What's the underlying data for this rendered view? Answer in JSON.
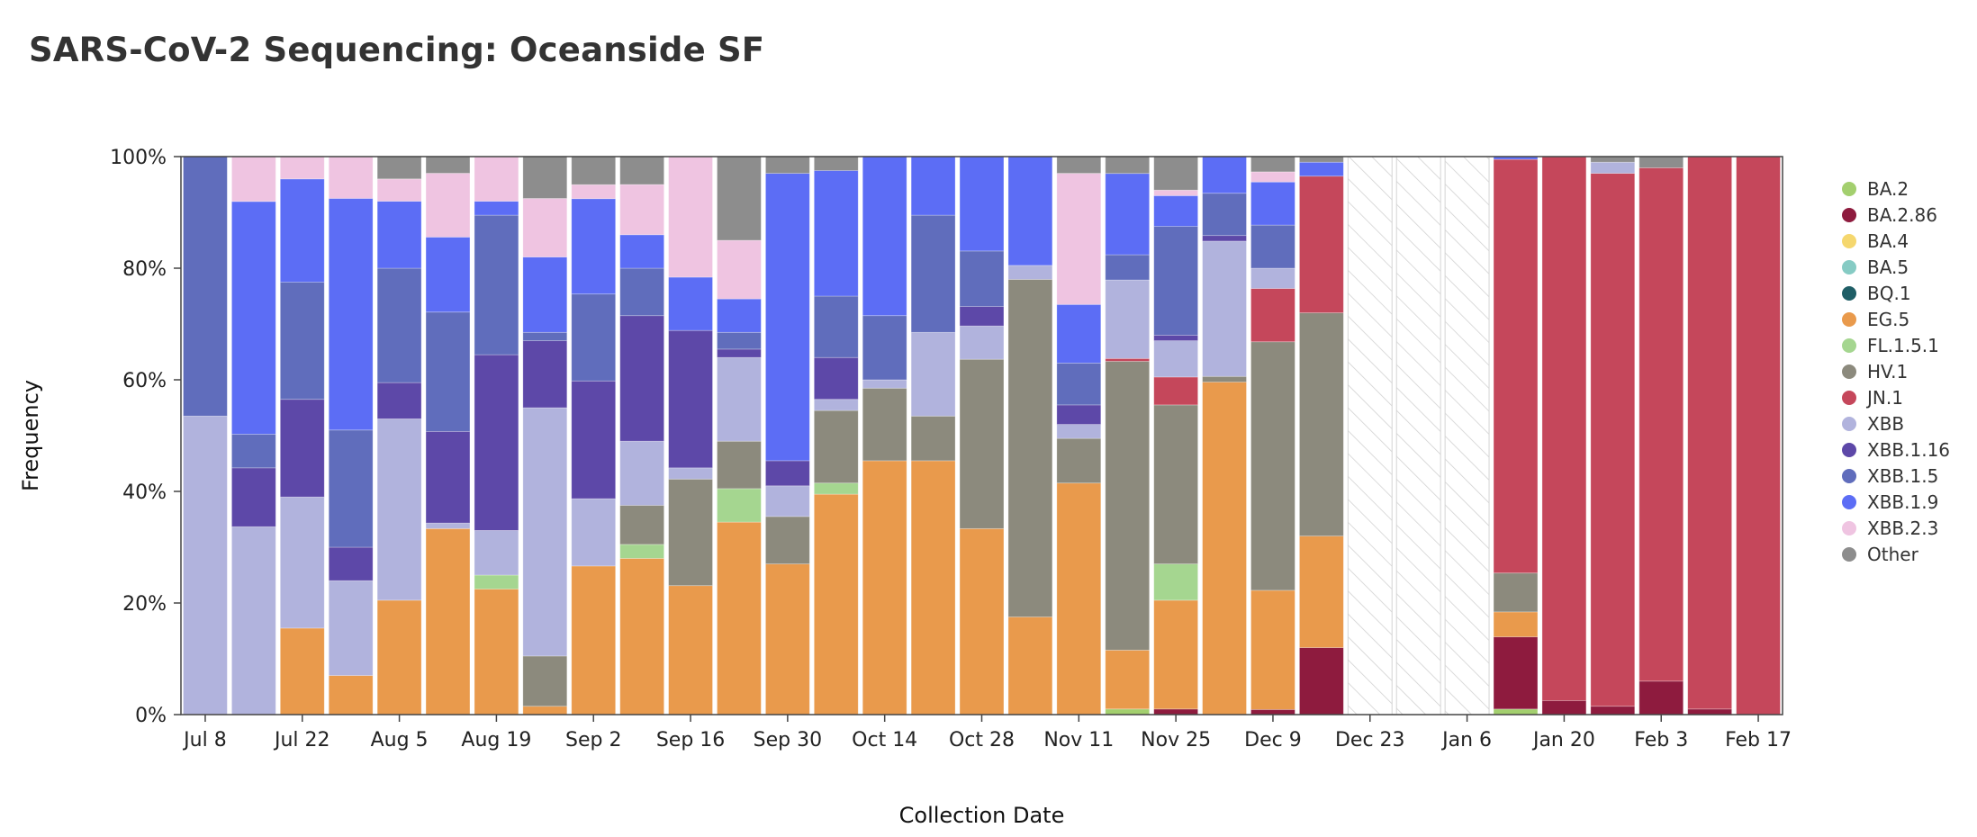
{
  "chart_data": {
    "type": "bar",
    "stacked": true,
    "normalized": true,
    "title": "SARS-CoV-2 Sequencing: Oceanside SF",
    "xlabel": "Collection Date",
    "ylabel": "Frequency",
    "ylim": [
      0,
      100
    ],
    "yticks": [
      "0%",
      "20%",
      "40%",
      "60%",
      "80%",
      "100%"
    ],
    "xtick_labels": [
      "Jul 8",
      "Jul 22",
      "Aug 5",
      "Aug 19",
      "Sep 2",
      "Sep 16",
      "Sep 30",
      "Oct 14",
      "Oct 28",
      "Nov 11",
      "Nov 25",
      "Dec 9",
      "Dec 23",
      "Jan 6",
      "Jan 20",
      "Feb 3",
      "Feb 17"
    ],
    "categories": [
      "Jul 8",
      "Jul 15",
      "Jul 22",
      "Jul 29",
      "Aug 5",
      "Aug 12",
      "Aug 19",
      "Aug 26",
      "Sep 2",
      "Sep 9",
      "Sep 16",
      "Sep 23",
      "Sep 30",
      "Oct 7",
      "Oct 14",
      "Oct 21",
      "Oct 28",
      "Nov 4",
      "Nov 11",
      "Nov 18",
      "Nov 25",
      "Dec 2",
      "Dec 9",
      "Dec 16",
      "Dec 23",
      "Dec 30",
      "Jan 6",
      "Jan 13",
      "Jan 20",
      "Jan 27",
      "Feb 3",
      "Feb 10",
      "Feb 17"
    ],
    "no_data_weeks": [
      "Dec 23",
      "Dec 30",
      "Jan 6"
    ],
    "legend_position": "right",
    "grid": false,
    "series": [
      {
        "name": "BA.2",
        "color": "#a3cf6e",
        "values": [
          0,
          0,
          0,
          0,
          0,
          0,
          0,
          0,
          0,
          0,
          0,
          0,
          0,
          0,
          0,
          0,
          0,
          0,
          0,
          1,
          0,
          0,
          0,
          0,
          0,
          0,
          0,
          1,
          0,
          0,
          0,
          0,
          0
        ]
      },
      {
        "name": "BA.2.86",
        "color": "#8e1b3e",
        "values": [
          0,
          0,
          0,
          0,
          0,
          0,
          0,
          0,
          0,
          0,
          0,
          0,
          0,
          0,
          0,
          0,
          0,
          0,
          0,
          0,
          1,
          0,
          1,
          12,
          0,
          0,
          0,
          13,
          2.5,
          1.5,
          6,
          1,
          0
        ]
      },
      {
        "name": "BA.4",
        "color": "#f5d76e",
        "values": [
          0,
          0,
          0,
          0,
          0,
          0,
          0,
          0,
          0,
          0,
          0,
          0,
          0,
          0,
          0,
          0,
          0,
          0,
          0,
          0,
          0,
          0,
          0,
          0,
          0,
          0,
          0,
          0,
          0,
          0,
          0,
          0,
          0
        ]
      },
      {
        "name": "BA.5",
        "color": "#86cbc4",
        "values": [
          0,
          0,
          0,
          0,
          0,
          0,
          0,
          0,
          0,
          0,
          0,
          0,
          0,
          0,
          0,
          0,
          0,
          0,
          0,
          0,
          0,
          0,
          0,
          0,
          0,
          0,
          0,
          0,
          0,
          0,
          0,
          0,
          0
        ]
      },
      {
        "name": "BQ.1",
        "color": "#1f5e66",
        "values": [
          0,
          0,
          0,
          0,
          0,
          0,
          0,
          0,
          0,
          0,
          0,
          0,
          0,
          0,
          0,
          0,
          0,
          0,
          0,
          0,
          0,
          0,
          0,
          0,
          0,
          0,
          0,
          0,
          0,
          0,
          0,
          0,
          0
        ]
      },
      {
        "name": "EG.5",
        "color": "#e99a4c",
        "values": [
          0,
          0,
          15.5,
          7,
          20.5,
          33.5,
          22.5,
          1.5,
          26.5,
          28,
          23,
          34.5,
          27,
          39.5,
          45.5,
          45.5,
          33.5,
          17.5,
          41.5,
          10.5,
          19.5,
          59,
          23.5,
          20,
          0,
          0,
          0,
          4.5,
          0,
          0,
          0,
          0,
          0
        ]
      },
      {
        "name": "FL.1.5.1",
        "color": "#a5d690",
        "values": [
          0,
          0,
          0,
          0,
          0,
          0,
          2.5,
          0,
          0,
          2.5,
          0,
          6,
          0,
          2,
          0,
          0,
          0,
          0,
          0,
          0,
          6.5,
          0,
          0,
          0,
          0,
          0,
          0,
          0,
          0,
          0,
          0,
          0,
          0
        ]
      },
      {
        "name": "HV.1",
        "color": "#8c8a7d",
        "values": [
          0,
          0,
          0,
          0,
          0,
          0,
          0,
          9,
          0,
          7,
          19,
          8.5,
          8.5,
          13,
          13,
          8,
          30.5,
          60.5,
          8,
          51.5,
          28.5,
          1,
          49,
          40,
          0,
          0,
          0,
          7,
          0,
          0,
          0,
          0,
          0
        ]
      },
      {
        "name": "JN.1",
        "color": "#c5475b",
        "values": [
          0,
          0,
          0,
          0,
          0,
          0,
          0,
          0,
          0,
          0,
          0,
          0,
          0,
          0,
          0,
          0,
          0,
          0,
          0,
          0.5,
          5,
          0,
          10.5,
          24.5,
          0,
          0,
          0,
          74.5,
          97.5,
          95.5,
          92,
          99,
          100
        ]
      },
      {
        "name": "XBB",
        "color": "#b1b3dd",
        "values": [
          53.5,
          33.5,
          23.5,
          17,
          32.5,
          1,
          8,
          44.5,
          12,
          11.5,
          2,
          15,
          5.5,
          2,
          1.5,
          15,
          6,
          2.5,
          2.5,
          14,
          6.5,
          24,
          4,
          0,
          0,
          0,
          0,
          0,
          0,
          2,
          0,
          0,
          0
        ]
      },
      {
        "name": "XBB.1.16",
        "color": "#5d48a8",
        "values": [
          0,
          10.5,
          17.5,
          6,
          6.5,
          16.5,
          31.5,
          12,
          21,
          22.5,
          24.5,
          1.5,
          4.5,
          7.5,
          0,
          0,
          3.5,
          0,
          3.5,
          0,
          1,
          1,
          0,
          0,
          0,
          0,
          0,
          0,
          0,
          0,
          0,
          0,
          0
        ]
      },
      {
        "name": "XBB.1.5",
        "color": "#606dbc",
        "values": [
          46.5,
          6,
          21,
          21,
          20.5,
          21.5,
          25,
          1.5,
          15.5,
          8.5,
          0,
          3,
          0,
          11,
          11.5,
          21,
          10,
          0,
          7.5,
          4.5,
          19.5,
          7.5,
          8.5,
          0,
          0,
          0,
          0,
          0,
          0,
          0,
          0,
          0,
          0
        ]
      },
      {
        "name": "XBB.1.9",
        "color": "#5c6df5",
        "values": [
          0,
          41.5,
          18.5,
          41.5,
          12,
          13.5,
          2.5,
          13.5,
          17,
          6,
          9.5,
          6,
          51.5,
          22.5,
          28.5,
          10.5,
          17,
          19.5,
          10.5,
          14.5,
          5.5,
          6.5,
          8.5,
          2.5,
          0,
          0,
          0,
          0.5,
          0,
          0,
          0,
          0,
          0
        ]
      },
      {
        "name": "XBB.2.3",
        "color": "#efc4e1",
        "values": [
          0,
          8,
          4,
          7.5,
          4,
          11.5,
          8,
          10.5,
          2.5,
          9,
          21.5,
          10.5,
          0,
          0,
          0,
          0,
          0,
          0,
          23.5,
          0,
          1,
          0,
          2,
          0,
          0,
          0,
          0,
          0,
          0,
          0,
          0,
          0,
          0
        ]
      },
      {
        "name": "Other",
        "color": "#8d8d8d",
        "values": [
          0,
          0,
          0,
          0,
          4,
          3,
          0,
          7.5,
          5,
          5,
          0,
          15,
          3,
          2.5,
          0,
          0,
          0,
          0,
          3,
          3,
          6,
          0,
          3,
          1,
          0,
          0,
          0,
          0,
          0,
          1,
          2,
          0,
          0
        ]
      }
    ]
  }
}
